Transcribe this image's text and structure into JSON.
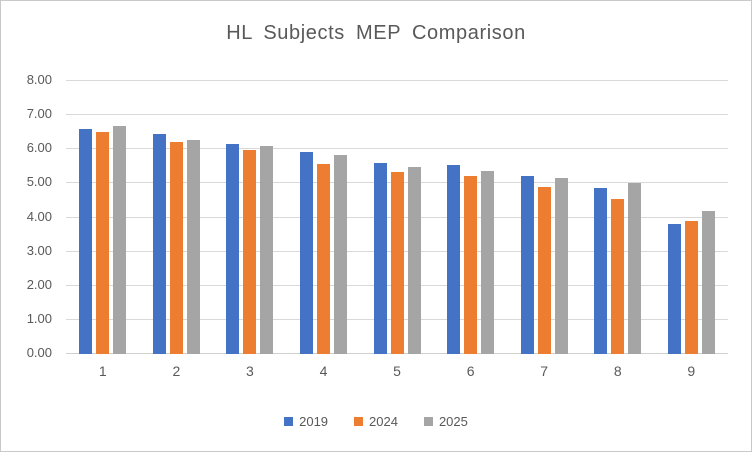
{
  "frame": {
    "background": "#ffffff",
    "border_color": "#c9c9c9"
  },
  "chart_data": {
    "type": "bar",
    "title": "HL Subjects MEP Comparison",
    "title_color": "#595959",
    "categories": [
      "1",
      "2",
      "3",
      "4",
      "5",
      "6",
      "7",
      "8",
      "9"
    ],
    "series": [
      {
        "name": "2019",
        "color": "#4472C4",
        "values": [
          6.58,
          6.46,
          6.14,
          5.92,
          5.61,
          5.54,
          5.23,
          4.87,
          3.82
        ]
      },
      {
        "name": "2024",
        "color": "#ED7D31",
        "values": [
          6.5,
          6.21,
          5.99,
          5.58,
          5.34,
          5.23,
          4.9,
          4.55,
          3.91
        ]
      },
      {
        "name": "2025",
        "color": "#A5A5A5",
        "values": [
          6.67,
          6.28,
          6.09,
          5.84,
          5.48,
          5.36,
          5.15,
          5.0,
          4.18
        ]
      }
    ],
    "xlabel": "",
    "ylabel": "",
    "ylim": [
      0,
      8
    ],
    "ytick_step": 1,
    "ytick_labels": [
      "0.00",
      "1.00",
      "2.00",
      "3.00",
      "4.00",
      "5.00",
      "6.00",
      "7.00",
      "8.00"
    ],
    "grid": "horizontal",
    "gridline_color": "#d9d9d9",
    "axis_text_color": "#595959",
    "legend_position": "bottom"
  }
}
